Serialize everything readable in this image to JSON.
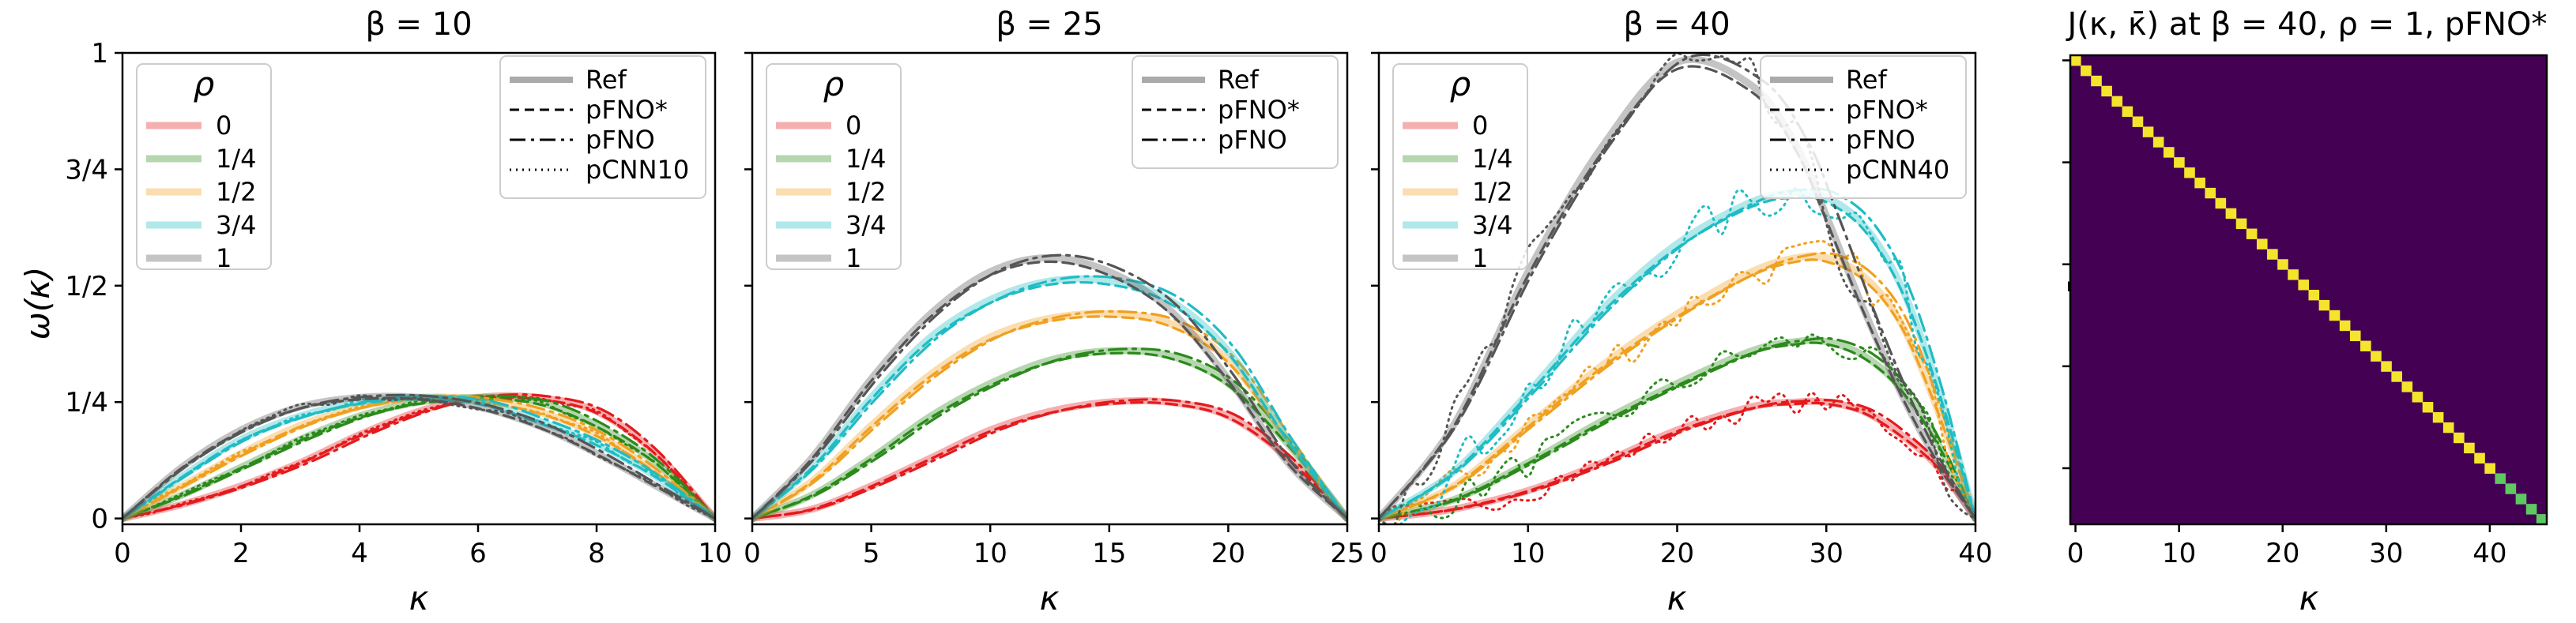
{
  "colors": {
    "rho_0": "#e41a1c",
    "rho_1_4": "#2a8a1a",
    "rho_1_2": "#f0a020",
    "rho_3_4": "#1fbcc4",
    "rho_1": "#555555",
    "matrix_background": "#440154",
    "matrix_diagonal": "#f4e52c",
    "matrix_diagonal_end": "#5ec962"
  },
  "chart_data": [
    {
      "type": "line",
      "title": "β = 10",
      "xlabel": "κ",
      "ylabel": "ω(κ)",
      "xlim": [
        0,
        10
      ],
      "ylim": [
        -0.0125,
        1
      ],
      "xticks": [
        0,
        2,
        4,
        6,
        8,
        10
      ],
      "xtick_labels": [
        "0",
        "2",
        "4",
        "6",
        "8",
        "10"
      ],
      "yticks": [
        0,
        0.25,
        0.5,
        0.75,
        1
      ],
      "ytick_labels": [
        "0",
        "1/4",
        "1/2",
        "3/4",
        "1"
      ],
      "legend_rho": {
        "title": "ρ",
        "entries": [
          "0",
          "1/4",
          "1/2",
          "3/4",
          "1"
        ]
      },
      "legend_style": {
        "entries": [
          "Ref",
          "pFNO*",
          "pFNO",
          "pCNN10"
        ]
      },
      "x": [
        0,
        1,
        2,
        3,
        4,
        5,
        6,
        7,
        8,
        9,
        10
      ],
      "series": [
        {
          "name": "0",
          "values": [
            0,
            0.03,
            0.07,
            0.12,
            0.18,
            0.23,
            0.26,
            0.26,
            0.23,
            0.14,
            0
          ]
        },
        {
          "name": "1/4",
          "values": [
            0,
            0.05,
            0.11,
            0.17,
            0.22,
            0.25,
            0.26,
            0.25,
            0.2,
            0.12,
            0
          ]
        },
        {
          "name": "1/2",
          "values": [
            0,
            0.07,
            0.14,
            0.2,
            0.24,
            0.26,
            0.255,
            0.23,
            0.18,
            0.1,
            0
          ]
        },
        {
          "name": "3/4",
          "values": [
            0,
            0.09,
            0.17,
            0.22,
            0.25,
            0.26,
            0.25,
            0.21,
            0.16,
            0.09,
            0
          ]
        },
        {
          "name": "1",
          "values": [
            0,
            0.11,
            0.19,
            0.24,
            0.26,
            0.26,
            0.24,
            0.2,
            0.14,
            0.07,
            0
          ]
        }
      ]
    },
    {
      "type": "line",
      "title": "β = 25",
      "xlabel": "κ",
      "xlim": [
        0,
        25
      ],
      "ylim": [
        -0.0125,
        1
      ],
      "xticks": [
        0,
        5,
        10,
        15,
        20,
        25
      ],
      "xtick_labels": [
        "0",
        "5",
        "10",
        "15",
        "20",
        "25"
      ],
      "yticks": [
        0,
        0.25,
        0.5,
        0.75,
        1
      ],
      "legend_rho": {
        "title": "ρ",
        "entries": [
          "0",
          "1/4",
          "1/2",
          "3/4",
          "1"
        ]
      },
      "legend_style": {
        "entries": [
          "Ref",
          "pFNO*",
          "pFNO"
        ]
      },
      "x": [
        0,
        2.5,
        5,
        7.5,
        10,
        12.5,
        15,
        17.5,
        20,
        22.5,
        25
      ],
      "series": [
        {
          "name": "0",
          "values": [
            0,
            0.02,
            0.07,
            0.13,
            0.19,
            0.23,
            0.25,
            0.25,
            0.22,
            0.13,
            0
          ]
        },
        {
          "name": "1/4",
          "values": [
            0,
            0.05,
            0.13,
            0.22,
            0.29,
            0.34,
            0.36,
            0.35,
            0.29,
            0.16,
            0
          ]
        },
        {
          "name": "1/2",
          "values": [
            0,
            0.08,
            0.2,
            0.31,
            0.39,
            0.43,
            0.44,
            0.42,
            0.34,
            0.17,
            0
          ]
        },
        {
          "name": "3/4",
          "values": [
            0,
            0.11,
            0.26,
            0.39,
            0.47,
            0.51,
            0.51,
            0.47,
            0.36,
            0.17,
            0
          ]
        },
        {
          "name": "1",
          "values": [
            0,
            0.13,
            0.3,
            0.44,
            0.53,
            0.56,
            0.53,
            0.45,
            0.3,
            0.12,
            0
          ]
        }
      ]
    },
    {
      "type": "line",
      "title": "β = 40",
      "xlabel": "κ",
      "xlim": [
        0,
        40
      ],
      "ylim": [
        -0.0125,
        1
      ],
      "xticks": [
        0,
        10,
        20,
        30,
        40
      ],
      "xtick_labels": [
        "0",
        "10",
        "20",
        "30",
        "40"
      ],
      "yticks": [
        0,
        0.25,
        0.5,
        0.75,
        1
      ],
      "legend_rho": {
        "title": "ρ",
        "entries": [
          "0",
          "1/4",
          "1/2",
          "3/4",
          "1"
        ]
      },
      "legend_style": {
        "entries": [
          "Ref",
          "pFNO*",
          "pFNO",
          "pCNN40"
        ]
      },
      "x": [
        0,
        5,
        10,
        15,
        20,
        25,
        28,
        30,
        32.5,
        35,
        37.5,
        40
      ],
      "series": [
        {
          "name": "0",
          "values": [
            0,
            0.02,
            0.06,
            0.12,
            0.19,
            0.24,
            0.25,
            0.25,
            0.23,
            0.18,
            0.11,
            0
          ]
        },
        {
          "name": "1/4",
          "values": [
            0,
            0.04,
            0.12,
            0.21,
            0.29,
            0.36,
            0.38,
            0.38,
            0.35,
            0.28,
            0.16,
            0
          ]
        },
        {
          "name": "1/2",
          "values": [
            0,
            0.07,
            0.2,
            0.33,
            0.44,
            0.53,
            0.56,
            0.56,
            0.52,
            0.42,
            0.23,
            0
          ]
        },
        {
          "name": "3/4",
          "values": [
            0,
            0.1,
            0.27,
            0.45,
            0.59,
            0.68,
            0.7,
            0.69,
            0.63,
            0.5,
            0.28,
            0
          ]
        },
        {
          "name": "1",
          "values": [
            0,
            0.2,
            0.53,
            0.8,
            0.98,
            0.93,
            0.8,
            0.65,
            0.45,
            0.27,
            0.12,
            0
          ]
        }
      ]
    },
    {
      "type": "heatmap",
      "title": "J(κ, κ̄) at β = 40, ρ = 1, pFNO*",
      "xlabel": "κ",
      "ylabel": "κ̄",
      "size": 46,
      "values_description_free": true,
      "diagonal": 1,
      "off_diagonal": 0,
      "xticks": [
        0,
        10,
        20,
        30,
        40
      ],
      "xtick_labels": [
        "0",
        "10",
        "20",
        "30",
        "40"
      ]
    }
  ]
}
